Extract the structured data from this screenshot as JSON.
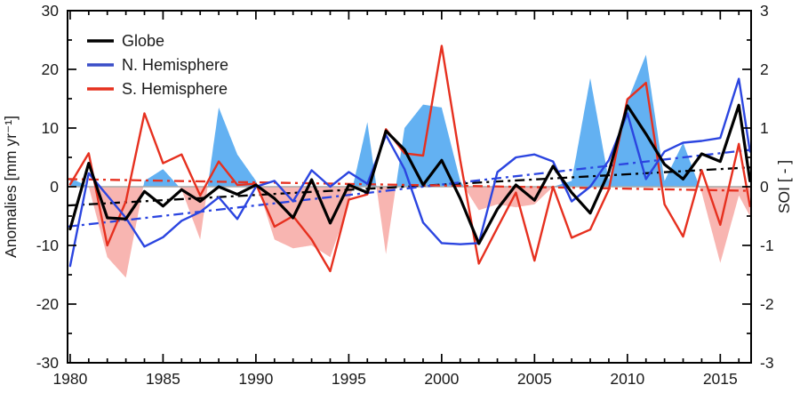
{
  "chart_data": {
    "type": "line",
    "title": "",
    "x_years": [
      1980,
      1981,
      1982,
      1983,
      1984,
      1985,
      1986,
      1987,
      1988,
      1989,
      1990,
      1991,
      1992,
      1993,
      1994,
      1995,
      1996,
      1997,
      1998,
      1999,
      2000,
      2001,
      2002,
      2003,
      2004,
      2005,
      2006,
      2007,
      2008,
      2009,
      2010,
      2011,
      2012,
      2013,
      2014,
      2015,
      2016,
      2016.6
    ],
    "series": [
      {
        "name": "Globe",
        "color": "#000000",
        "width": 3.2,
        "values": [
          -7.2,
          4.0,
          -5.3,
          -5.5,
          -0.8,
          -3.3,
          -0.5,
          -2.5,
          0.0,
          -1.3,
          0.3,
          -2.0,
          -5.3,
          1.2,
          -6.2,
          0.3,
          -1.0,
          9.5,
          6.3,
          0.3,
          4.5,
          -2.0,
          -9.7,
          -3.8,
          0.3,
          -2.3,
          3.5,
          -1.0,
          -4.5,
          2.5,
          13.8,
          9.0,
          3.8,
          1.3,
          5.6,
          4.3,
          13.9,
          1.0
        ]
      },
      {
        "name": "N. Hemisphere",
        "color": "#2b45e0",
        "width": 2.4,
        "values": [
          -13.5,
          2.3,
          -1.5,
          -5.3,
          -10.2,
          -8.6,
          -5.8,
          -4.3,
          -1.8,
          -5.5,
          0.0,
          1.0,
          -2.5,
          2.8,
          0.0,
          2.5,
          0.5,
          8.8,
          3.0,
          -6.1,
          -9.6,
          -9.8,
          -9.6,
          2.5,
          5.0,
          5.5,
          4.3,
          -2.5,
          0.0,
          4.5,
          12.5,
          1.3,
          6.0,
          7.5,
          7.8,
          8.3,
          18.4,
          6.0
        ]
      },
      {
        "name": "S. Hemisphere",
        "color": "#e6301f",
        "width": 2.4,
        "values": [
          0.4,
          5.7,
          -10.0,
          -2.5,
          12.5,
          4.0,
          5.5,
          -1.5,
          4.3,
          0.3,
          0.5,
          -6.8,
          -5.0,
          -9.0,
          -14.4,
          -2.2,
          -1.3,
          9.8,
          5.7,
          5.3,
          24.0,
          4.5,
          -13.1,
          -7.0,
          -1.0,
          -12.6,
          0.0,
          -8.7,
          -7.3,
          -0.5,
          14.9,
          17.7,
          -3.0,
          -8.5,
          2.8,
          -6.5,
          7.3,
          -3.3
        ]
      }
    ],
    "trend_lines": [
      {
        "series": "Globe",
        "color": "#000000",
        "start_year": 1979.86,
        "end_year": 2016.66,
        "start_value": -3.2,
        "end_value": 3.3
      },
      {
        "series": "N. Hemisphere",
        "color": "#2b45e0",
        "start_year": 1979.86,
        "end_year": 2016.66,
        "start_value": -6.8,
        "end_value": 6.3
      },
      {
        "series": "S. Hemisphere",
        "color": "#e6301f",
        "start_year": 1979.86,
        "end_year": 2016.66,
        "start_value": 1.3,
        "end_value": -0.7
      }
    ],
    "soi_fill": {
      "axis": "right",
      "positive_color": "#63b1f2",
      "negative_color": "#f8b5b1",
      "values": [
        0.15,
        0.0,
        -1.2,
        -1.55,
        0.1,
        0.3,
        -0.05,
        -0.9,
        1.35,
        0.55,
        0.1,
        -0.9,
        -1.05,
        -1.0,
        -1.2,
        -0.3,
        1.1,
        -1.15,
        1.0,
        1.4,
        1.35,
        0.1,
        -0.4,
        -0.3,
        -0.35,
        -0.3,
        0.0,
        0.1,
        1.85,
        0.1,
        1.45,
        2.25,
        0.1,
        0.75,
        -0.1,
        -1.3,
        -0.15,
        -0.5
      ]
    },
    "axes": {
      "left": {
        "label": "Anomalies [mm yr⁻¹]",
        "min": -30,
        "max": 30,
        "major_ticks": [
          30,
          20,
          10,
          0,
          -10,
          -20,
          -30
        ],
        "minor_step": 5
      },
      "right": {
        "label": "SOI [ - ]",
        "min": -3,
        "max": 3,
        "major_ticks": [
          3,
          2,
          1,
          0,
          -1,
          -2,
          -3
        ],
        "minor_step": 0.5
      },
      "x": {
        "min": 1979.86,
        "max": 2016.66,
        "major_ticks": [
          1980,
          1985,
          1990,
          1995,
          2000,
          2005,
          2010,
          2015
        ],
        "minor_step": 1
      }
    },
    "zero_line_color": "#a9a9a9",
    "legend": {
      "items": [
        {
          "label": "Globe",
          "color": "#000000"
        },
        {
          "label": "N. Hemisphere",
          "color": "#3a4ec8"
        },
        {
          "label": "S. Hemisphere",
          "color": "#e6301f"
        }
      ]
    },
    "grid": false,
    "legend_position": "top-left"
  }
}
